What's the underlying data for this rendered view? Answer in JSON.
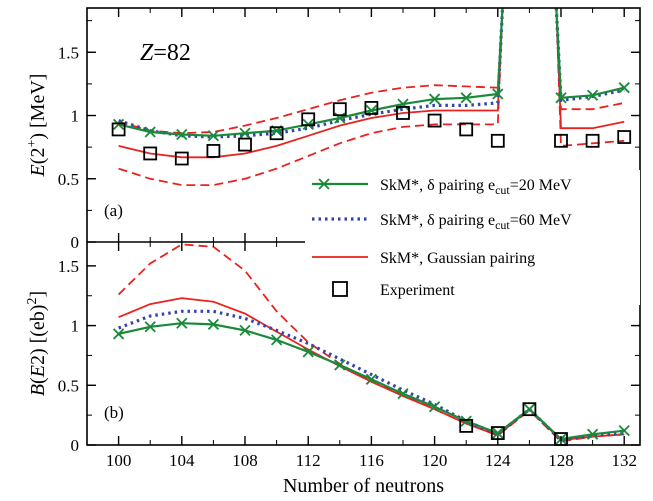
{
  "chart_data": {
    "type": "line",
    "xlabel": "Number of neutrons",
    "x_ticks": [
      100,
      104,
      108,
      112,
      116,
      120,
      124,
      128,
      132
    ],
    "xlim": [
      98,
      133
    ],
    "legend_position": "bottom-right of panel (a)",
    "panels": [
      {
        "id": "a",
        "panel_label": "(a)",
        "annotation_italic": "Z",
        "annotation_rest": "=82",
        "ylabel": "E(2+) [MeV]",
        "ylim": [
          0,
          1.85
        ],
        "y_ticks": [
          0,
          0.5,
          1,
          1.5
        ],
        "y_tick_labels": [
          "0",
          "0.5",
          "1",
          "1.5"
        ],
        "series": [
          {
            "name": "SkM*, δ pairing e_cut=20 MeV",
            "style": "green-cross",
            "segments": [
              {
                "x": [
                  100,
                  102,
                  104,
                  106,
                  108,
                  110,
                  112,
                  114,
                  116,
                  118,
                  120,
                  122,
                  124,
                  124.3
                ],
                "y": [
                  0.93,
                  0.87,
                  0.85,
                  0.84,
                  0.86,
                  0.88,
                  0.93,
                  0.98,
                  1.04,
                  1.09,
                  1.13,
                  1.14,
                  1.17,
                  1.85
                ]
              },
              {
                "x": [
                  127.7,
                  128,
                  130,
                  132
                ],
                "y": [
                  1.85,
                  1.14,
                  1.16,
                  1.22
                ]
              }
            ],
            "markers": {
              "x": [
                100,
                102,
                104,
                106,
                108,
                110,
                112,
                114,
                116,
                118,
                120,
                122,
                124,
                128,
                130,
                132
              ],
              "y": [
                0.93,
                0.87,
                0.85,
                0.84,
                0.86,
                0.88,
                0.93,
                0.98,
                1.04,
                1.09,
                1.13,
                1.14,
                1.17,
                1.14,
                1.16,
                1.22
              ]
            }
          },
          {
            "name": "SkM*, δ pairing e_cut=60 MeV",
            "style": "blue-dotted",
            "segments": [
              {
                "x": [
                  100,
                  102,
                  104,
                  106,
                  108,
                  110,
                  112,
                  114,
                  116,
                  118,
                  120,
                  122,
                  124,
                  124.3
                ],
                "y": [
                  0.96,
                  0.88,
                  0.84,
                  0.83,
                  0.84,
                  0.86,
                  0.9,
                  0.96,
                  1.01,
                  1.05,
                  1.08,
                  1.08,
                  1.1,
                  1.85
                ]
              },
              {
                "x": [
                  127.7,
                  128,
                  130,
                  132
                ],
                "y": [
                  1.85,
                  1.12,
                  1.15,
                  1.2
                ]
              }
            ]
          },
          {
            "name": "SkM*, Gaussian pairing",
            "style": "red-solid",
            "segments": [
              {
                "x": [
                  100,
                  102,
                  104,
                  106,
                  108,
                  110,
                  112,
                  114,
                  116,
                  118,
                  120,
                  122,
                  124,
                  124.3
                ],
                "y": [
                  0.76,
                  0.7,
                  0.67,
                  0.67,
                  0.7,
                  0.76,
                  0.84,
                  0.92,
                  0.98,
                  1.02,
                  1.04,
                  1.04,
                  1.04,
                  1.85
                ]
              },
              {
                "x": [
                  127.7,
                  128,
                  130,
                  132
                ],
                "y": [
                  1.85,
                  0.9,
                  0.9,
                  0.95
                ]
              }
            ]
          },
          {
            "name": "Gaussian pairing upper band",
            "style": "red-dashed",
            "segments": [
              {
                "x": [
                  100,
                  102,
                  104,
                  106,
                  108,
                  110,
                  112,
                  114,
                  116,
                  118,
                  120,
                  122,
                  124,
                  124.3
                ],
                "y": [
                  0.95,
                  0.88,
                  0.86,
                  0.87,
                  0.92,
                  0.98,
                  1.05,
                  1.12,
                  1.18,
                  1.22,
                  1.24,
                  1.23,
                  1.22,
                  1.85
                ]
              },
              {
                "x": [
                  127.7,
                  128,
                  130,
                  132
                ],
                "y": [
                  1.85,
                  1.05,
                  1.05,
                  1.1
                ]
              }
            ]
          },
          {
            "name": "Gaussian pairing lower band",
            "style": "red-dashed",
            "segments": [
              {
                "x": [
                  100,
                  102,
                  104,
                  106,
                  108,
                  110,
                  112,
                  114,
                  116,
                  118,
                  120,
                  122,
                  124,
                  124.3
                ],
                "y": [
                  0.58,
                  0.5,
                  0.45,
                  0.45,
                  0.5,
                  0.58,
                  0.68,
                  0.78,
                  0.86,
                  0.91,
                  0.93,
                  0.93,
                  0.93,
                  1.85
                ]
              },
              {
                "x": [
                  127.7,
                  128,
                  130,
                  132
                ],
                "y": [
                  1.85,
                  0.76,
                  0.78,
                  0.8
                ]
              }
            ]
          },
          {
            "name": "Experiment",
            "style": "square",
            "markers": {
              "x": [
                100,
                102,
                104,
                106,
                108,
                110,
                112,
                114,
                116,
                118,
                120,
                122,
                124,
                128,
                130,
                132
              ],
              "y": [
                0.89,
                0.7,
                0.66,
                0.72,
                0.77,
                0.86,
                0.97,
                1.05,
                1.06,
                1.02,
                0.96,
                0.89,
                0.8,
                0.8,
                0.8,
                0.83
              ]
            }
          }
        ]
      },
      {
        "id": "b",
        "panel_label": "(b)",
        "ylabel": "B(E2) [(eb)²]",
        "ylim": [
          0,
          1.7
        ],
        "y_ticks": [
          0,
          0.5,
          1,
          1.5
        ],
        "y_tick_labels": [
          "0",
          "0.5",
          "1",
          "1.5"
        ],
        "series": [
          {
            "name": "SkM*, δ pairing e_cut=20 MeV",
            "style": "green-cross",
            "segments": [
              {
                "x": [
                  100,
                  102,
                  104,
                  106,
                  108,
                  110,
                  112,
                  114,
                  116,
                  118,
                  120,
                  122,
                  124,
                  126,
                  128,
                  130,
                  132
                ],
                "y": [
                  0.93,
                  0.99,
                  1.02,
                  1.01,
                  0.96,
                  0.88,
                  0.78,
                  0.67,
                  0.55,
                  0.43,
                  0.32,
                  0.2,
                  0.1,
                  0.3,
                  0.05,
                  0.09,
                  0.12
                ]
              }
            ],
            "markers": {
              "x": [
                100,
                102,
                104,
                106,
                108,
                110,
                112,
                114,
                116,
                118,
                120,
                122,
                124,
                126,
                128,
                130,
                132
              ],
              "y": [
                0.93,
                0.99,
                1.02,
                1.01,
                0.96,
                0.88,
                0.78,
                0.67,
                0.55,
                0.43,
                0.32,
                0.2,
                0.1,
                0.3,
                0.05,
                0.09,
                0.12
              ]
            }
          },
          {
            "name": "SkM*, δ pairing e_cut=60 MeV",
            "style": "blue-dotted",
            "segments": [
              {
                "x": [
                  100,
                  102,
                  104,
                  106,
                  108,
                  110,
                  112,
                  114,
                  116,
                  118,
                  120,
                  122,
                  124,
                  126,
                  128,
                  130,
                  132
                ],
                "y": [
                  0.98,
                  1.08,
                  1.12,
                  1.12,
                  1.06,
                  0.96,
                  0.85,
                  0.72,
                  0.59,
                  0.46,
                  0.34,
                  0.2,
                  0.09,
                  0.3,
                  0.04,
                  0.08,
                  0.1
                ]
              }
            ]
          },
          {
            "name": "SkM*, Gaussian pairing",
            "style": "red-solid",
            "segments": [
              {
                "x": [
                  100,
                  102,
                  104,
                  106,
                  108,
                  110,
                  112,
                  114,
                  116,
                  118,
                  120,
                  122,
                  124,
                  126,
                  128,
                  130,
                  132
                ],
                "y": [
                  1.07,
                  1.18,
                  1.23,
                  1.2,
                  1.1,
                  0.95,
                  0.8,
                  0.66,
                  0.53,
                  0.41,
                  0.3,
                  0.18,
                  0.08,
                  0.3,
                  0.04,
                  0.07,
                  0.09
                ]
              }
            ]
          },
          {
            "name": "Gaussian pairing upper band",
            "style": "red-dashed",
            "segments": [
              {
                "x": [
                  100,
                  102,
                  104,
                  106,
                  108,
                  110,
                  112,
                  114,
                  116,
                  118,
                  120,
                  122,
                  124,
                  126,
                  128,
                  130,
                  132
                ],
                "y": [
                  1.26,
                  1.52,
                  1.68,
                  1.66,
                  1.46,
                  1.12,
                  0.86,
                  0.68,
                  0.53,
                  0.42,
                  0.3,
                  0.18,
                  0.08,
                  0.29,
                  0.03,
                  0.07,
                  0.09
                ]
              }
            ]
          },
          {
            "name": "Experiment",
            "style": "square",
            "markers": {
              "x": [
                122,
                124,
                126,
                128
              ],
              "y": [
                0.16,
                0.1,
                0.3,
                0.05
              ]
            }
          }
        ]
      }
    ],
    "legend": [
      {
        "style": "green-cross",
        "prefix": "SkM*, δ pairing e",
        "sub": "cut",
        "suffix": "=20 MeV"
      },
      {
        "style": "blue-dotted",
        "prefix": "SkM*, δ pairing e",
        "sub": "cut",
        "suffix": "=60 MeV"
      },
      {
        "style": "red-solid",
        "prefix": "SkM*, Gaussian pairing",
        "sub": "",
        "suffix": ""
      },
      {
        "style": "square",
        "prefix": "Experiment",
        "sub": "",
        "suffix": ""
      }
    ],
    "colors": {
      "green": "#1a8a3a",
      "blue": "#3344aa",
      "red": "#e8231f",
      "black": "#000000"
    }
  }
}
